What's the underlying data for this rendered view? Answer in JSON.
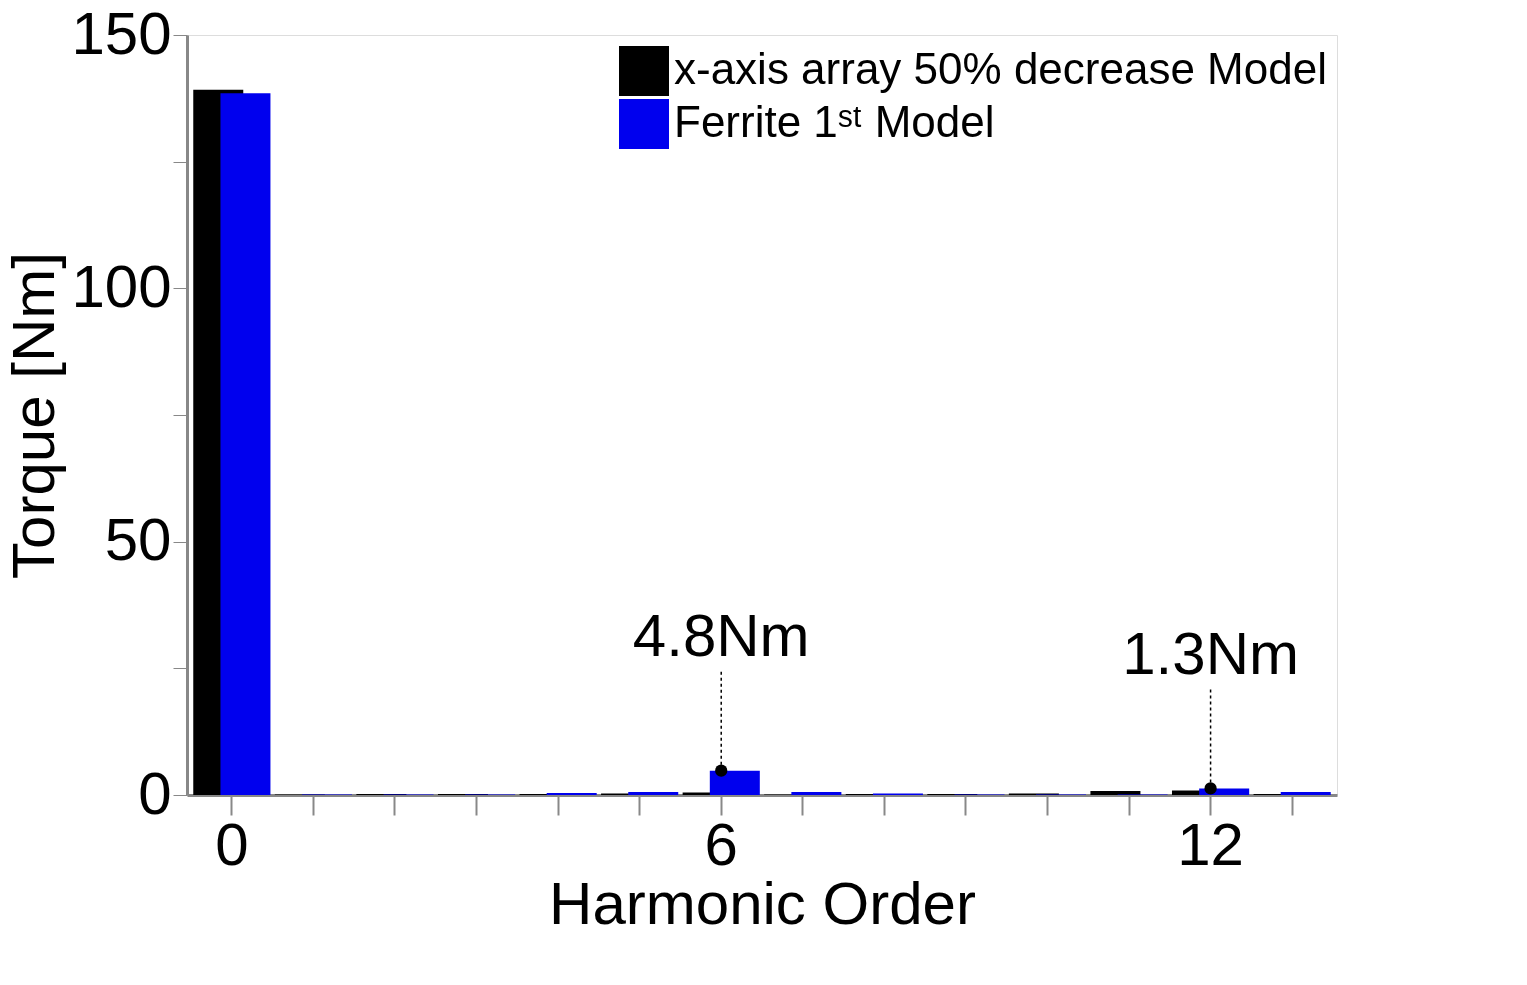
{
  "chart_data": {
    "type": "bar",
    "xlabel": "Harmonic Order",
    "ylabel": "Torque [Nm]",
    "categories": [
      "0",
      null,
      null,
      null,
      null,
      null,
      "6",
      null,
      null,
      null,
      null,
      null,
      "12",
      null
    ],
    "series": [
      {
        "name": "x-axis array 50% decrease Model",
        "color": "#000000",
        "values": [
          139.2,
          0.1,
          0.2,
          0.2,
          0.2,
          0.3,
          0.5,
          0.1,
          0.2,
          0.2,
          0.3,
          0.8,
          0.9,
          0.2
        ]
      },
      {
        "name": "Ferrite 1ˢᵗ Model",
        "color": "#0000ee",
        "values": [
          138.5,
          0.1,
          0.1,
          0.1,
          0.4,
          0.6,
          4.8,
          0.6,
          0.3,
          0.1,
          0.1,
          0.1,
          1.3,
          0.6
        ]
      }
    ],
    "ylim": [
      0,
      150
    ],
    "yticks": [
      0,
      {
        "value": 25,
        "label": null
      },
      50,
      {
        "value": 75,
        "label": null
      },
      100,
      {
        "value": 125,
        "label": null
      },
      150
    ],
    "annotations": [
      {
        "text": "4.8Nm",
        "x": "6",
        "y": 4.8
      },
      {
        "text": "1.3Nm",
        "x": "12",
        "y": 1.3
      }
    ],
    "legend": "top right",
    "grid": false
  }
}
